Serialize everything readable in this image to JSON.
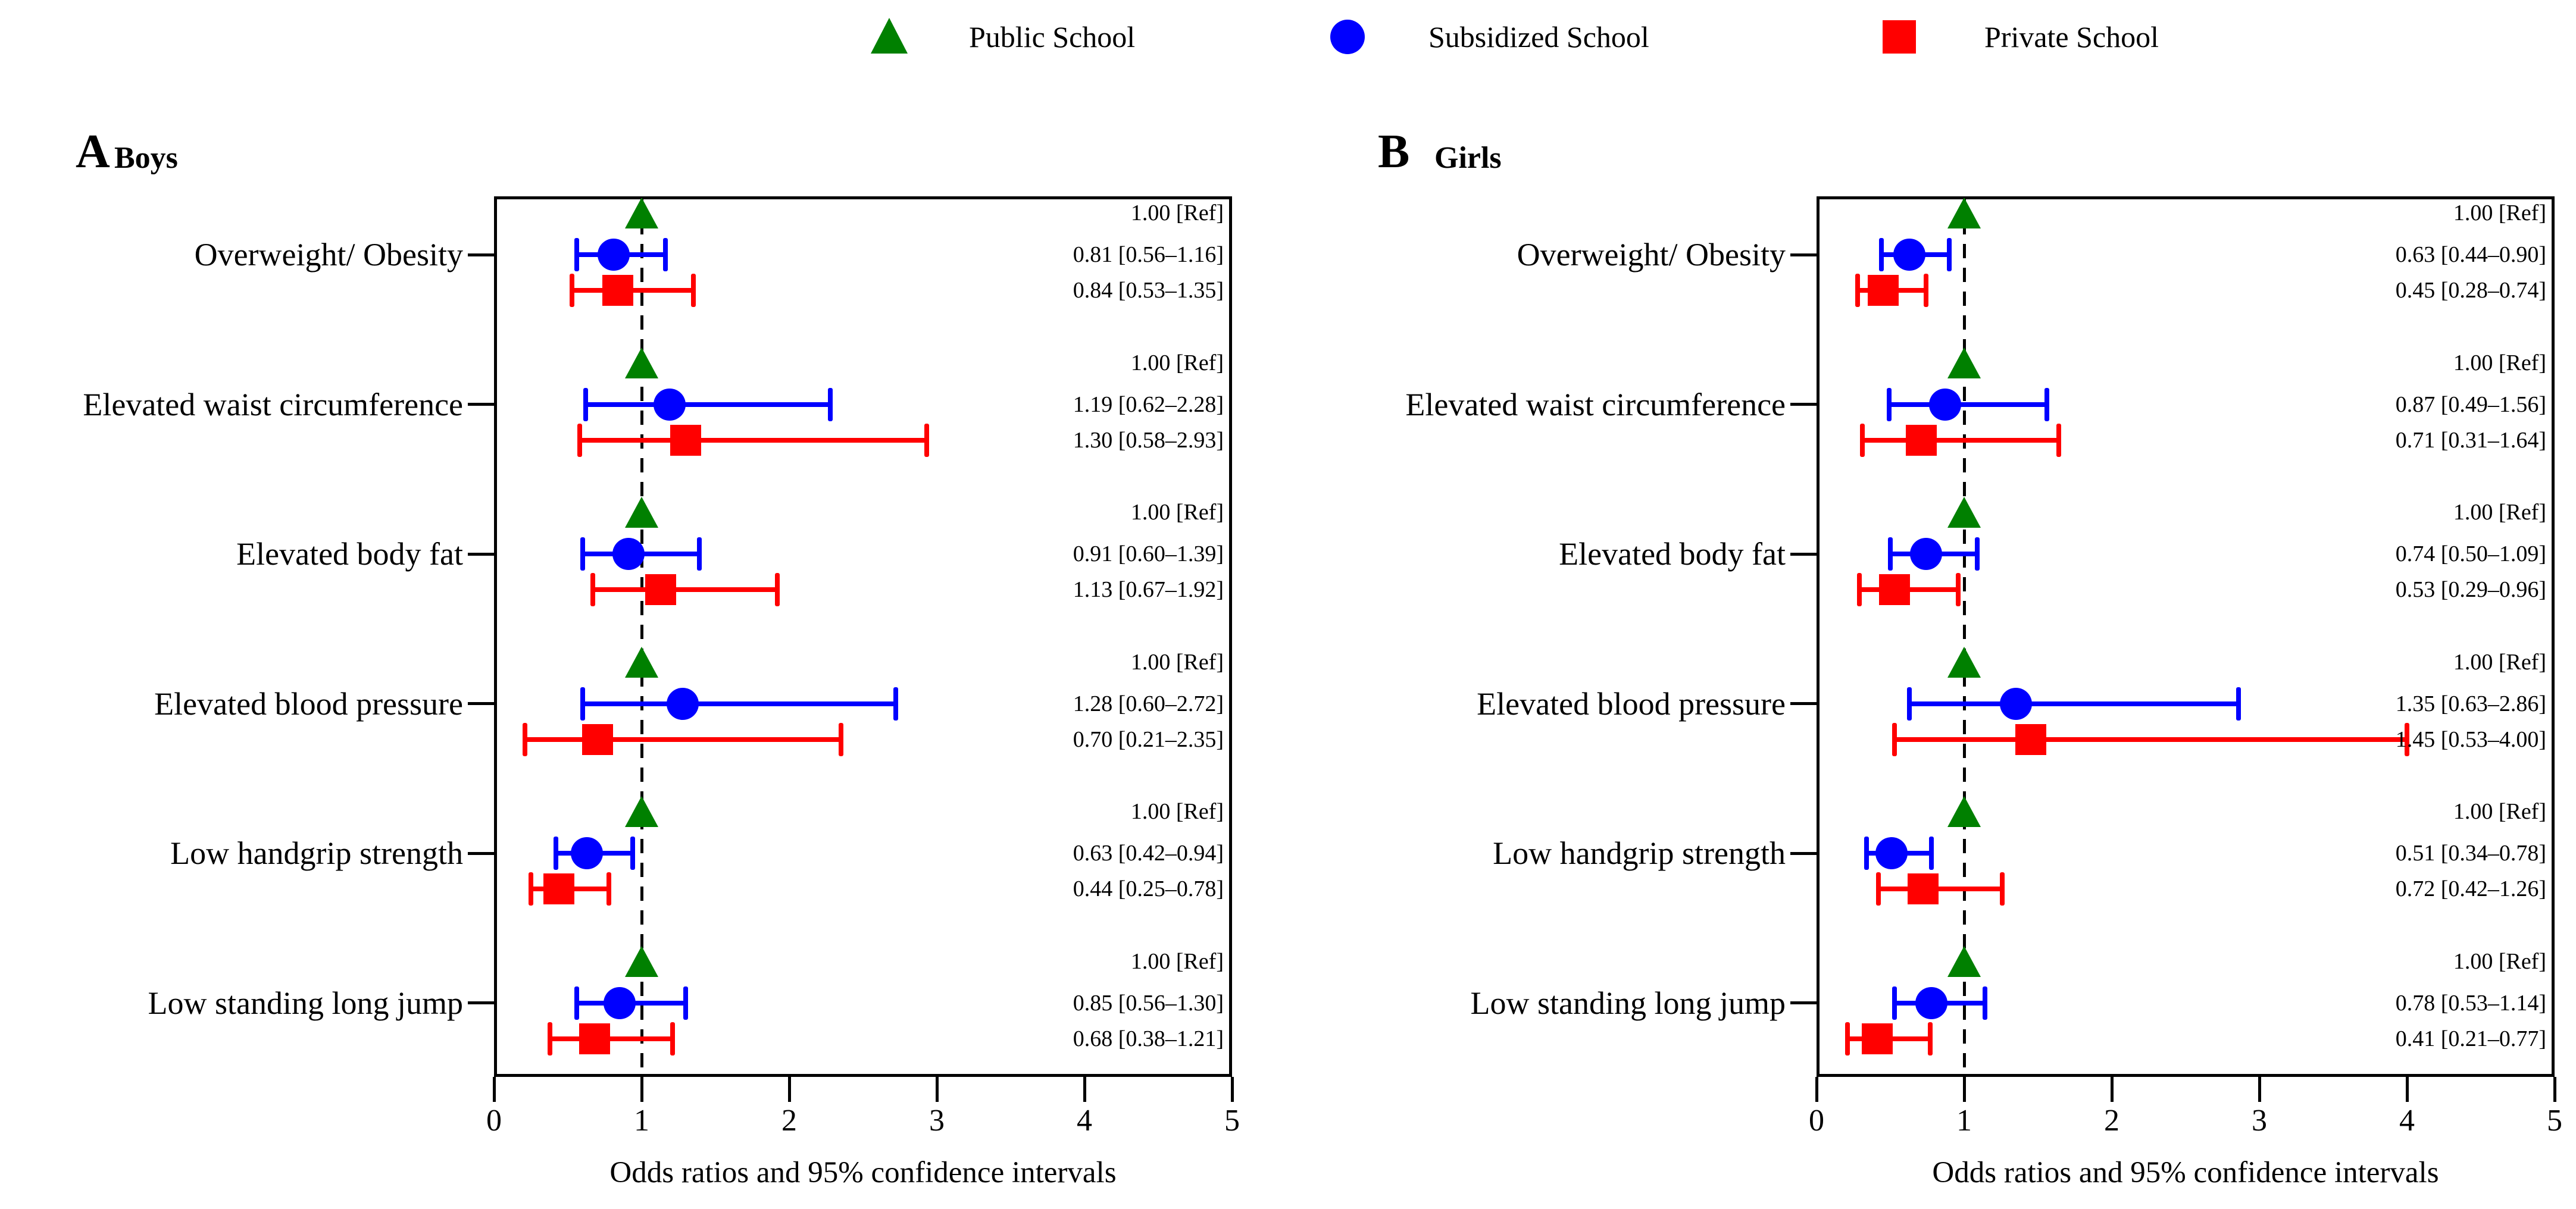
{
  "figure": {
    "legend": [
      {
        "label": "Public School",
        "marker": "triangle",
        "color": "#008000"
      },
      {
        "label": "Subsidized School",
        "marker": "circle",
        "color": "#0000ff"
      },
      {
        "label": "Private School",
        "marker": "square",
        "color": "#ff0000"
      }
    ],
    "x_axis": {
      "label": "Odds ratios and 95% confidence intervals",
      "ticks": [
        0,
        1,
        2,
        3,
        4,
        5
      ],
      "min": 0,
      "max": 5,
      "reference_line": 1
    }
  },
  "chart_data": [
    {
      "type": "forest",
      "panel": "A",
      "title": "Boys",
      "categories": [
        "Overweight/ Obesity",
        "Elevated waist circumference",
        "Elevated body fat",
        "Elevated blood pressure",
        "Low handgrip strength",
        "Low standing long jump"
      ],
      "rows": [
        [
          {
            "series": "Public School",
            "or": 1.0,
            "lo": null,
            "hi": null,
            "label": "1.00 [Ref]"
          },
          {
            "series": "Subsidized School",
            "or": 0.81,
            "lo": 0.56,
            "hi": 1.16,
            "label": "0.81 [0.56–1.16]"
          },
          {
            "series": "Private School",
            "or": 0.84,
            "lo": 0.53,
            "hi": 1.35,
            "label": "0.84 [0.53–1.35]"
          }
        ],
        [
          {
            "series": "Public School",
            "or": 1.0,
            "lo": null,
            "hi": null,
            "label": "1.00 [Ref]"
          },
          {
            "series": "Subsidized School",
            "or": 1.19,
            "lo": 0.62,
            "hi": 2.28,
            "label": "1.19 [0.62–2.28]"
          },
          {
            "series": "Private School",
            "or": 1.3,
            "lo": 0.58,
            "hi": 2.93,
            "label": "1.30 [0.58–2.93]"
          }
        ],
        [
          {
            "series": "Public School",
            "or": 1.0,
            "lo": null,
            "hi": null,
            "label": "1.00 [Ref]"
          },
          {
            "series": "Subsidized School",
            "or": 0.91,
            "lo": 0.6,
            "hi": 1.39,
            "label": "0.91 [0.60–1.39]"
          },
          {
            "series": "Private School",
            "or": 1.13,
            "lo": 0.67,
            "hi": 1.92,
            "label": "1.13 [0.67–1.92]"
          }
        ],
        [
          {
            "series": "Public School",
            "or": 1.0,
            "lo": null,
            "hi": null,
            "label": "1.00 [Ref]"
          },
          {
            "series": "Subsidized School",
            "or": 1.28,
            "lo": 0.6,
            "hi": 2.72,
            "label": "1.28 [0.60–2.72]"
          },
          {
            "series": "Private School",
            "or": 0.7,
            "lo": 0.21,
            "hi": 2.35,
            "label": "0.70 [0.21–2.35]"
          }
        ],
        [
          {
            "series": "Public School",
            "or": 1.0,
            "lo": null,
            "hi": null,
            "label": "1.00 [Ref]"
          },
          {
            "series": "Subsidized School",
            "or": 0.63,
            "lo": 0.42,
            "hi": 0.94,
            "label": "0.63 [0.42–0.94]"
          },
          {
            "series": "Private School",
            "or": 0.44,
            "lo": 0.25,
            "hi": 0.78,
            "label": "0.44 [0.25–0.78]"
          }
        ],
        [
          {
            "series": "Public School",
            "or": 1.0,
            "lo": null,
            "hi": null,
            "label": "1.00 [Ref]"
          },
          {
            "series": "Subsidized School",
            "or": 0.85,
            "lo": 0.56,
            "hi": 1.3,
            "label": "0.85 [0.56–1.30]"
          },
          {
            "series": "Private School",
            "or": 0.68,
            "lo": 0.38,
            "hi": 1.21,
            "label": "0.68 [0.38–1.21]"
          }
        ]
      ]
    },
    {
      "type": "forest",
      "panel": "B",
      "title": "Girls",
      "categories": [
        "Overweight/ Obesity",
        "Elevated waist circumference",
        "Elevated body fat",
        "Elevated blood pressure",
        "Low handgrip strength",
        "Low standing long jump"
      ],
      "rows": [
        [
          {
            "series": "Public School",
            "or": 1.0,
            "lo": null,
            "hi": null,
            "label": "1.00 [Ref]"
          },
          {
            "series": "Subsidized School",
            "or": 0.63,
            "lo": 0.44,
            "hi": 0.9,
            "label": "0.63 [0.44–0.90]"
          },
          {
            "series": "Private School",
            "or": 0.45,
            "lo": 0.28,
            "hi": 0.74,
            "label": "0.45 [0.28–0.74]"
          }
        ],
        [
          {
            "series": "Public School",
            "or": 1.0,
            "lo": null,
            "hi": null,
            "label": "1.00 [Ref]"
          },
          {
            "series": "Subsidized School",
            "or": 0.87,
            "lo": 0.49,
            "hi": 1.56,
            "label": "0.87 [0.49–1.56]"
          },
          {
            "series": "Private School",
            "or": 0.71,
            "lo": 0.31,
            "hi": 1.64,
            "label": "0.71 [0.31–1.64]"
          }
        ],
        [
          {
            "series": "Public School",
            "or": 1.0,
            "lo": null,
            "hi": null,
            "label": "1.00 [Ref]"
          },
          {
            "series": "Subsidized School",
            "or": 0.74,
            "lo": 0.5,
            "hi": 1.09,
            "label": "0.74 [0.50–1.09]"
          },
          {
            "series": "Private School",
            "or": 0.53,
            "lo": 0.29,
            "hi": 0.96,
            "label": "0.53 [0.29–0.96]"
          }
        ],
        [
          {
            "series": "Public School",
            "or": 1.0,
            "lo": null,
            "hi": null,
            "label": "1.00 [Ref]"
          },
          {
            "series": "Subsidized School",
            "or": 1.35,
            "lo": 0.63,
            "hi": 2.86,
            "label": "1.35 [0.63–2.86]"
          },
          {
            "series": "Private School",
            "or": 1.45,
            "lo": 0.53,
            "hi": 4.0,
            "label": "1.45 [0.53–4.00]"
          }
        ],
        [
          {
            "series": "Public School",
            "or": 1.0,
            "lo": null,
            "hi": null,
            "label": "1.00 [Ref]"
          },
          {
            "series": "Subsidized School",
            "or": 0.51,
            "lo": 0.34,
            "hi": 0.78,
            "label": "0.51 [0.34–0.78]"
          },
          {
            "series": "Private School",
            "or": 0.72,
            "lo": 0.42,
            "hi": 1.26,
            "label": "0.72 [0.42–1.26]"
          }
        ],
        [
          {
            "series": "Public School",
            "or": 1.0,
            "lo": null,
            "hi": null,
            "label": "1.00 [Ref]"
          },
          {
            "series": "Subsidized School",
            "or": 0.78,
            "lo": 0.53,
            "hi": 1.14,
            "label": "0.78 [0.53–1.14]"
          },
          {
            "series": "Private School",
            "or": 0.41,
            "lo": 0.21,
            "hi": 0.77,
            "label": "0.41 [0.21–0.77]"
          }
        ]
      ]
    }
  ]
}
